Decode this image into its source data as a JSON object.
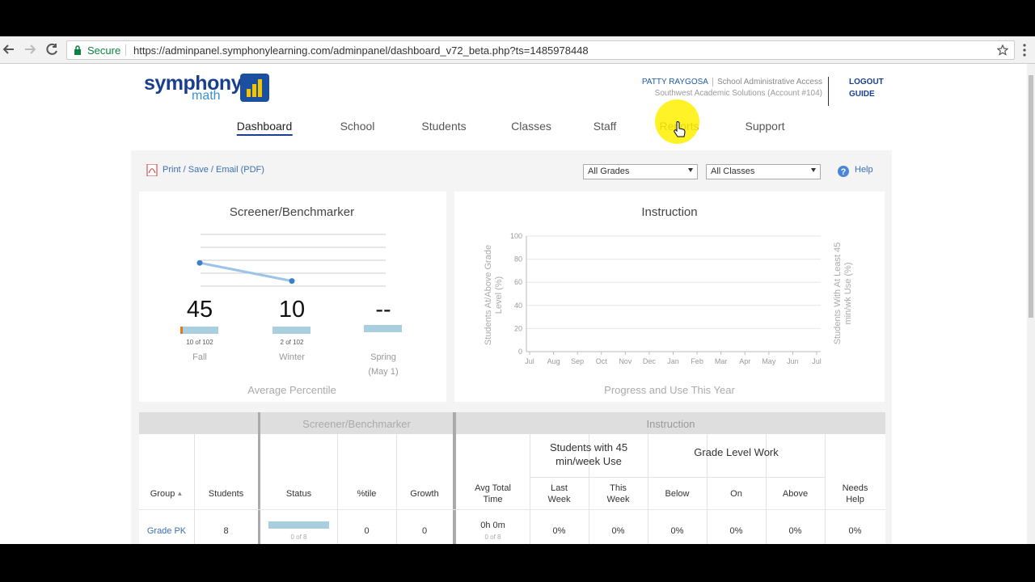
{
  "browser": {
    "secure": "Secure",
    "url": "https://adminpanel.symphonylearning.com/adminpanel/dashboard_v72_beta.php?ts=1485978448"
  },
  "header": {
    "logo": {
      "brand": "symphony",
      "product": "math"
    },
    "user": {
      "name": "PATTY RAYGOSA",
      "role": "School Administrative Access",
      "account": "Southwest Academic Solutions (Account #104)"
    },
    "links": [
      "LOGOUT",
      "GUIDE"
    ],
    "nav": [
      "Dashboard",
      "School",
      "Students",
      "Classes",
      "Staff",
      "Reports",
      "Support"
    ]
  },
  "toolbar": {
    "print": "Print / Save / Email (PDF)",
    "filters": [
      "All Grades",
      "All Classes"
    ],
    "help": "Help"
  },
  "screener": {
    "title": "Screener/Benchmarker",
    "ylim": [
      0,
      100
    ],
    "periods": [
      {
        "name": "Fall",
        "value": 45,
        "count": "10 of 102"
      },
      {
        "name": "Winter",
        "value": 10,
        "count": "2 of 102"
      },
      {
        "name": "Spring",
        "value": null,
        "value_label": "--",
        "date": "(May 1)"
      }
    ],
    "caption": "Average Percentile"
  },
  "instruction": {
    "title": "Instruction",
    "ylim": [
      0,
      100
    ],
    "yticks": [
      0,
      20,
      40,
      60,
      80,
      100
    ],
    "categories": [
      "Jul",
      "Aug",
      "Sep",
      "Oct",
      "Nov",
      "Dec",
      "Jan",
      "Feb",
      "Mar",
      "Apr",
      "May",
      "Jun",
      "Jul"
    ],
    "ylabel": "Students At/Above Grade Level (%)",
    "y2label": "Students With At Least 45 min/wk Use (%)",
    "caption": "Progress and Use This Year"
  },
  "table": {
    "groups": [
      "Screener/Benchmarker",
      "Instruction"
    ],
    "subgroups": [
      "Students with 45 min/week Use",
      "Grade Level Work"
    ],
    "columns": [
      "Group",
      "Students",
      "Status",
      "%tile",
      "Growth",
      "Avg Total Time",
      "Last Week",
      "This Week",
      "Below",
      "On",
      "Above",
      "Needs Help"
    ],
    "rows": [
      [
        "Grade PK",
        8,
        {
          "sub": "0 of 8"
        },
        0,
        0,
        {
          "main": "0h 0m",
          "sub": "0 of 8"
        },
        "0%",
        "0%",
        "0%",
        "0%",
        "0%",
        "0%"
      ]
    ]
  }
}
